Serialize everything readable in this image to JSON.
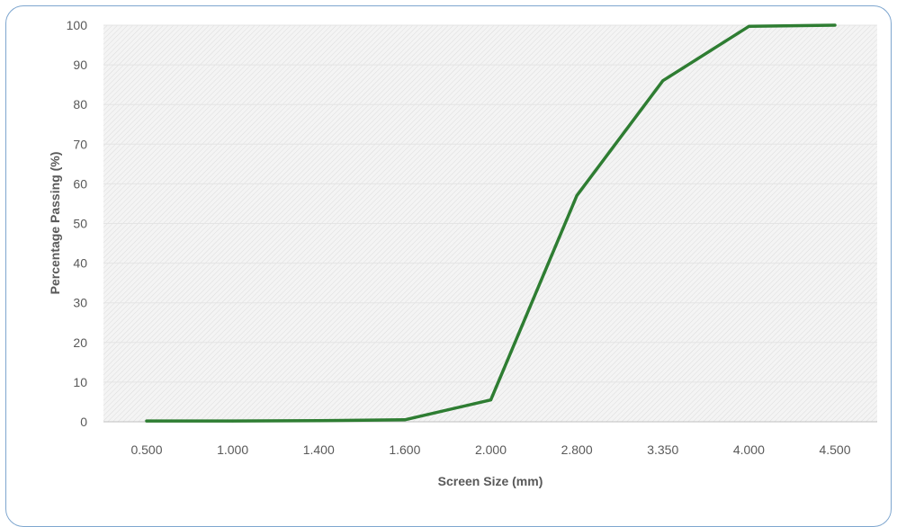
{
  "chart_data": {
    "type": "line",
    "title": "",
    "xlabel": "Screen Size (mm)",
    "ylabel": "Percentage Passing (%)",
    "categories": [
      "0.500",
      "1.000",
      "1.400",
      "1.600",
      "2.000",
      "2.800",
      "3.350",
      "4.000",
      "4.500"
    ],
    "series": [
      {
        "values": [
          0.2,
          0.2,
          0.3,
          0.5,
          5.5,
          57,
          86,
          99.7,
          100
        ],
        "color": "#2e7d32"
      }
    ],
    "ylim": [
      0,
      100
    ],
    "yticks": [
      0,
      10,
      20,
      30,
      40,
      50,
      60,
      70,
      80,
      90,
      100
    ],
    "grid": true,
    "plot_background": "hatched light gray",
    "legend": "none"
  }
}
